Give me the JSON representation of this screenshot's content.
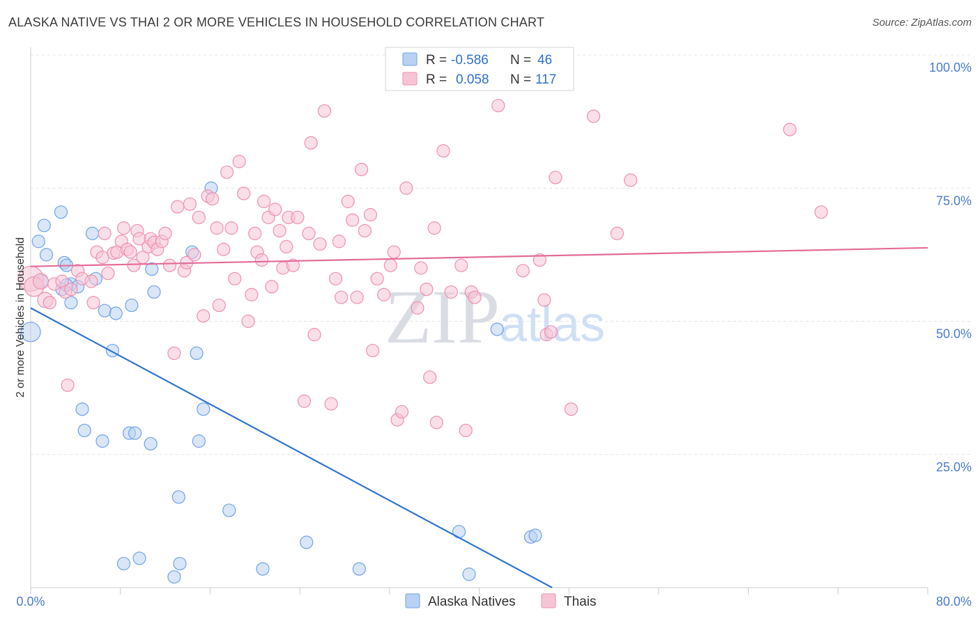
{
  "chart_data": {
    "type": "scatter",
    "title": "ALASKA NATIVE VS THAI 2 OR MORE VEHICLES IN HOUSEHOLD CORRELATION CHART",
    "source": "Source: ZipAtlas.com",
    "ylabel": "2 or more Vehicles in Household",
    "xlim": [
      0,
      80
    ],
    "ylim": [
      0,
      100
    ],
    "x_tick_labels": [
      {
        "v": 0,
        "label": "0.0%"
      },
      {
        "v": 80,
        "label": "80.0%"
      }
    ],
    "y_tick_labels": [
      {
        "v": 100,
        "label": "100.0%"
      },
      {
        "v": 75,
        "label": "75.0%"
      },
      {
        "v": 50,
        "label": "50.0%"
      },
      {
        "v": 25,
        "label": "25.0%"
      }
    ],
    "watermark": {
      "zip": "ZIP",
      "atlas": "atlas"
    },
    "legend": [
      {
        "r_label": "R =",
        "r_value": "-0.586",
        "n_label": "N =",
        "n_value": "46"
      },
      {
        "r_label": "R =",
        "r_value": "0.058",
        "n_label": "N =",
        "n_value": "117"
      }
    ],
    "series": [
      {
        "name": "Alaska Natives",
        "color": "#6fa3e6",
        "fill": "#b9d2f3",
        "line_color": "#2f74d0",
        "trend": {
          "x": [
            0,
            46.5
          ],
          "y": [
            52.5,
            0
          ]
        },
        "points": [
          [
            0,
            48,
            14
          ],
          [
            0.7,
            65,
            9
          ],
          [
            1.2,
            68,
            9
          ],
          [
            1.4,
            62.5,
            9
          ],
          [
            2.7,
            70.5,
            9
          ],
          [
            2.8,
            56,
            9
          ],
          [
            3.0,
            61,
            9
          ],
          [
            3.2,
            60.5,
            9
          ],
          [
            3.6,
            57,
            9
          ],
          [
            3.6,
            53.5,
            9
          ],
          [
            4.2,
            56.5,
            9
          ],
          [
            5.5,
            66.5,
            9
          ],
          [
            5.8,
            58,
            9
          ],
          [
            6.6,
            52,
            9
          ],
          [
            7.3,
            44.5,
            9
          ],
          [
            7.6,
            51.5,
            9
          ],
          [
            9.0,
            53,
            9
          ],
          [
            10.8,
            59.8,
            9
          ],
          [
            11.0,
            55.5,
            9
          ],
          [
            14.4,
            63,
            9
          ],
          [
            16.1,
            75,
            9
          ],
          [
            4.6,
            33.5,
            9
          ],
          [
            4.8,
            29.5,
            9
          ],
          [
            6.4,
            27.5,
            9
          ],
          [
            8.8,
            29,
            9
          ],
          [
            9.3,
            29,
            9
          ],
          [
            10.7,
            27,
            9
          ],
          [
            13.2,
            17,
            9
          ],
          [
            14.8,
            44,
            9
          ],
          [
            15.0,
            27.5,
            9
          ],
          [
            15.4,
            33.5,
            9
          ],
          [
            17.7,
            14.5,
            9
          ],
          [
            8.3,
            4.5,
            9
          ],
          [
            9.7,
            5.5,
            9
          ],
          [
            12.8,
            2,
            9
          ],
          [
            13.3,
            4.5,
            9
          ],
          [
            20.7,
            3.5,
            9
          ],
          [
            24.6,
            8.5,
            9
          ],
          [
            29.3,
            3.5,
            9
          ],
          [
            38.2,
            10.5,
            9
          ],
          [
            39.1,
            2.5,
            9
          ],
          [
            41.6,
            48.5,
            9
          ],
          [
            44.6,
            9.5,
            9
          ],
          [
            45.0,
            9.8,
            9
          ],
          [
            1.0,
            57.5,
            9
          ],
          [
            3.2,
            56.8,
            9
          ]
        ]
      },
      {
        "name": "Thais",
        "color": "#ee8fb2",
        "fill": "#f7c4d6",
        "line_color": "#e46b98",
        "trend": {
          "x": [
            0,
            80
          ],
          "y": [
            60.3,
            63.8
          ]
        },
        "points": [
          [
            0,
            58,
            18
          ],
          [
            0.3,
            56.5,
            14
          ],
          [
            0.9,
            57.5,
            11
          ],
          [
            1.3,
            54,
            11
          ],
          [
            1.7,
            53.5,
            9
          ],
          [
            2.1,
            57,
            9
          ],
          [
            2.8,
            57.5,
            9
          ],
          [
            3.1,
            55.5,
            9
          ],
          [
            3.3,
            38,
            9
          ],
          [
            3.6,
            56,
            9
          ],
          [
            4.2,
            59.5,
            9
          ],
          [
            4.6,
            58,
            9
          ],
          [
            5.4,
            57.5,
            9
          ],
          [
            5.6,
            53.5,
            9
          ],
          [
            5.9,
            63,
            9
          ],
          [
            6.4,
            62,
            9
          ],
          [
            6.6,
            66.5,
            9
          ],
          [
            6.9,
            59,
            9
          ],
          [
            7.4,
            62.8,
            9
          ],
          [
            7.7,
            63,
            9
          ],
          [
            8.1,
            65,
            9
          ],
          [
            8.3,
            67.5,
            9
          ],
          [
            8.6,
            63.5,
            9
          ],
          [
            8.9,
            63,
            9
          ],
          [
            9.2,
            60.5,
            9
          ],
          [
            9.5,
            67,
            9
          ],
          [
            9.7,
            65.5,
            9
          ],
          [
            10.0,
            62,
            9
          ],
          [
            10.5,
            64,
            9
          ],
          [
            10.7,
            65.5,
            9
          ],
          [
            11.0,
            64.8,
            9
          ],
          [
            11.3,
            63.5,
            9
          ],
          [
            11.7,
            65,
            9
          ],
          [
            12.0,
            66.5,
            9
          ],
          [
            12.4,
            60.5,
            9
          ],
          [
            12.8,
            44,
            9
          ],
          [
            13.1,
            71.5,
            9
          ],
          [
            13.7,
            59.5,
            9
          ],
          [
            13.9,
            61,
            9
          ],
          [
            14.2,
            72,
            9
          ],
          [
            14.6,
            62.5,
            9
          ],
          [
            15.0,
            69.5,
            9
          ],
          [
            15.4,
            51,
            9
          ],
          [
            15.8,
            73.5,
            9
          ],
          [
            16.2,
            73,
            9
          ],
          [
            16.6,
            67.5,
            9
          ],
          [
            16.8,
            53,
            9
          ],
          [
            17.2,
            63.5,
            9
          ],
          [
            17.5,
            78,
            9
          ],
          [
            17.9,
            67.5,
            9
          ],
          [
            18.2,
            58,
            9
          ],
          [
            18.6,
            80,
            9
          ],
          [
            19.0,
            74,
            9
          ],
          [
            19.4,
            50,
            9
          ],
          [
            19.7,
            55,
            9
          ],
          [
            20.0,
            66.5,
            9
          ],
          [
            20.2,
            63,
            9
          ],
          [
            20.6,
            61.5,
            9
          ],
          [
            20.8,
            72.5,
            9
          ],
          [
            21.2,
            69.5,
            9
          ],
          [
            21.5,
            56.5,
            9
          ],
          [
            21.8,
            71,
            9
          ],
          [
            22.2,
            67,
            9
          ],
          [
            22.5,
            60,
            9
          ],
          [
            22.8,
            64,
            9
          ],
          [
            23.0,
            69.5,
            9
          ],
          [
            23.4,
            60.5,
            9
          ],
          [
            23.8,
            69.5,
            9
          ],
          [
            24.4,
            35,
            9
          ],
          [
            24.8,
            66.5,
            9
          ],
          [
            25.0,
            83.5,
            9
          ],
          [
            25.3,
            47.5,
            9
          ],
          [
            25.8,
            64.5,
            9
          ],
          [
            26.2,
            89.5,
            9
          ],
          [
            26.8,
            34.5,
            9
          ],
          [
            27.2,
            58,
            9
          ],
          [
            27.7,
            54.5,
            9
          ],
          [
            27.5,
            65,
            9
          ],
          [
            28.3,
            72.5,
            9
          ],
          [
            28.7,
            69,
            9
          ],
          [
            29.1,
            54.5,
            9
          ],
          [
            29.5,
            78.5,
            9
          ],
          [
            29.8,
            67,
            9
          ],
          [
            30.3,
            70,
            9
          ],
          [
            30.5,
            44.5,
            9
          ],
          [
            30.9,
            58,
            9
          ],
          [
            31.5,
            55,
            9
          ],
          [
            32.1,
            60.5,
            9
          ],
          [
            32.4,
            63,
            9
          ],
          [
            32.7,
            31.5,
            9
          ],
          [
            33.1,
            33,
            9
          ],
          [
            33.5,
            75,
            9
          ],
          [
            34.5,
            52.5,
            9
          ],
          [
            34.8,
            60,
            9
          ],
          [
            35.3,
            56,
            9
          ],
          [
            35.6,
            39.5,
            9
          ],
          [
            36.0,
            67.5,
            9
          ],
          [
            36.2,
            31,
            9
          ],
          [
            36.8,
            82,
            9
          ],
          [
            37.5,
            55.5,
            9
          ],
          [
            38.4,
            60.5,
            9
          ],
          [
            38.8,
            29.5,
            9
          ],
          [
            39.3,
            55.5,
            9
          ],
          [
            39.6,
            54.5,
            9
          ],
          [
            41.7,
            90.5,
            9
          ],
          [
            43.9,
            59.5,
            9
          ],
          [
            45.4,
            61.5,
            9
          ],
          [
            45.8,
            54,
            9
          ],
          [
            46.0,
            47.5,
            9
          ],
          [
            46.4,
            48,
            9
          ],
          [
            46.8,
            77,
            9
          ],
          [
            48.2,
            33.5,
            9
          ],
          [
            50.2,
            88.5,
            9
          ],
          [
            52.3,
            66.5,
            9
          ],
          [
            53.5,
            76.5,
            9
          ],
          [
            67.7,
            86,
            9
          ],
          [
            70.5,
            70.5,
            9
          ]
        ]
      }
    ]
  }
}
